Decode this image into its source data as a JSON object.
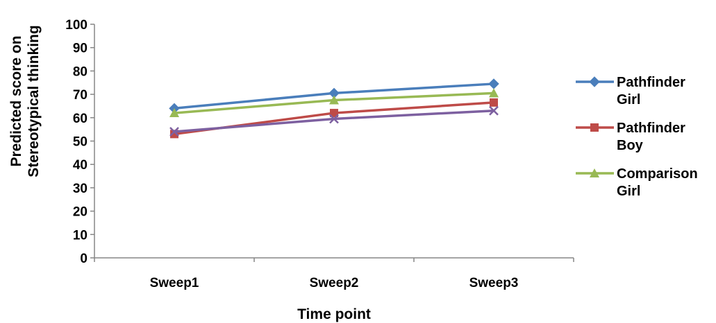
{
  "chart_data": {
    "type": "line",
    "categories": [
      "Sweep1",
      "Sweep2",
      "Sweep3"
    ],
    "xlabel": "Time point",
    "ylabel": [
      "Predicted score on",
      "Stereotypical thinking"
    ],
    "ylim": [
      0,
      100
    ],
    "yticks": [
      0,
      10,
      20,
      30,
      40,
      50,
      60,
      70,
      80,
      90,
      100
    ],
    "grid": false,
    "legend_position": "right",
    "series": [
      {
        "name": [
          "Pathfinder",
          "Girl"
        ],
        "values": [
          64,
          70.5,
          74.5
        ],
        "color": "#4a7ebb",
        "marker": "diamond"
      },
      {
        "name": [
          "Pathfinder",
          "Boy"
        ],
        "values": [
          53,
          62,
          66.5
        ],
        "color": "#be4b48",
        "marker": "square"
      },
      {
        "name": [
          "Comparison",
          "Girl"
        ],
        "values": [
          62,
          67.5,
          70.5
        ],
        "color": "#98b954",
        "marker": "triangle"
      },
      {
        "values": [
          54,
          59.5,
          63
        ],
        "color": "#7d60a0",
        "marker": "x"
      }
    ]
  }
}
